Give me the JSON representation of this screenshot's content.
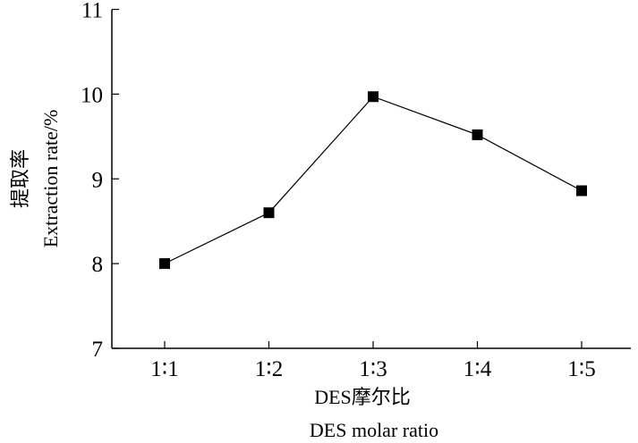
{
  "chart_data": {
    "type": "line",
    "categories": [
      "1:1",
      "1:2",
      "1:3",
      "1:4",
      "1:5"
    ],
    "series": [
      {
        "name": "Extraction rate",
        "values": [
          8.0,
          8.6,
          9.97,
          9.52,
          8.86
        ],
        "marker": "square",
        "color": "#000000"
      }
    ],
    "xlabel": "DES摩尔比",
    "xlabel_en": "DES molar ratio",
    "ylabel": "提取率",
    "ylabel_en": "Extraction rate/%",
    "ylim": [
      7,
      11
    ],
    "yticks": [
      7,
      8,
      9,
      10,
      11
    ],
    "grid": false
  }
}
